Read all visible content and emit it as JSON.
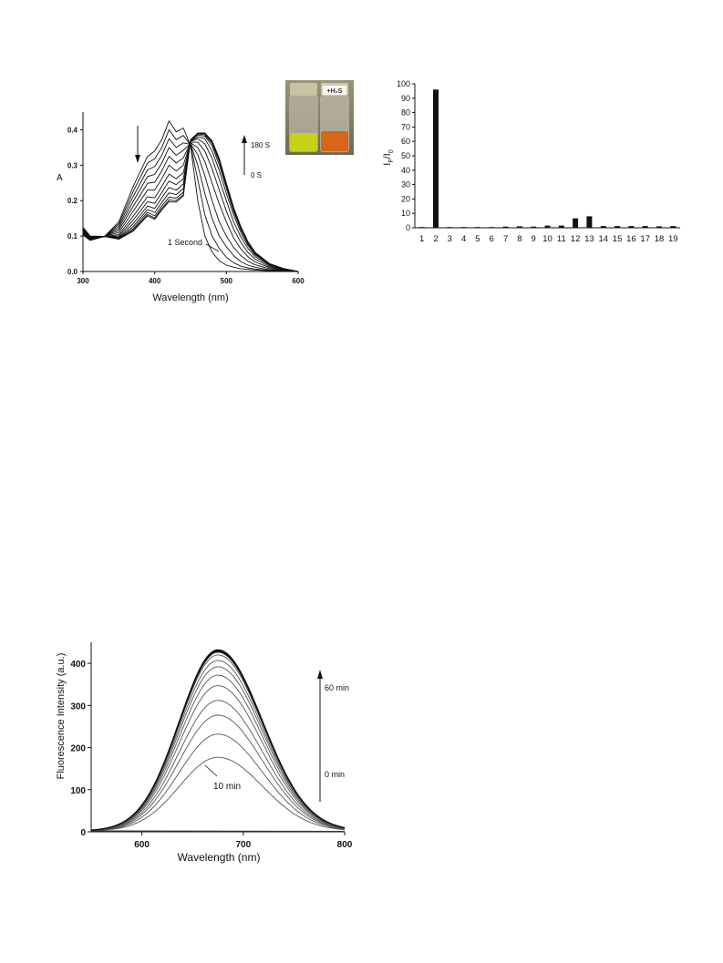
{
  "chart_data": [
    {
      "type": "line",
      "xlabel": "Wavelength (nm)",
      "ylabel": "A",
      "xlim": [
        300,
        600
      ],
      "ylim": [
        0,
        0.45
      ],
      "x_ticks": [
        "300",
        "400",
        "500",
        "600"
      ],
      "y_ticks": [
        "0.0",
        "0.1",
        "0.2",
        "0.3",
        "0.4"
      ],
      "annotations": {
        "time_top": "180 S",
        "time_bottom": "0 S",
        "first_curve": "1 Second"
      },
      "series": [
        {
          "x": [
            300,
            310,
            330,
            350,
            370,
            390,
            400,
            410,
            420,
            430,
            440,
            450,
            460,
            470,
            480,
            490,
            500,
            510,
            520,
            530,
            540,
            560,
            580,
            600
          ],
          "y": [
            0.125,
            0.1,
            0.099,
            0.14,
            0.24,
            0.325,
            0.34,
            0.372,
            0.425,
            0.394,
            0.405,
            0.355,
            0.2,
            0.1,
            0.055,
            0.03,
            0.018,
            0.012,
            0.008,
            0.006,
            0.004,
            0.002,
            0.001,
            0
          ]
        },
        {
          "x": [
            300,
            310,
            330,
            350,
            370,
            390,
            400,
            410,
            420,
            430,
            440,
            450,
            460,
            470,
            480,
            490,
            500,
            510,
            520,
            530,
            540,
            560,
            580,
            600
          ],
          "y": [
            0.122,
            0.098,
            0.099,
            0.134,
            0.226,
            0.306,
            0.318,
            0.35,
            0.4,
            0.372,
            0.384,
            0.357,
            0.26,
            0.16,
            0.1,
            0.065,
            0.04,
            0.025,
            0.015,
            0.01,
            0.007,
            0.003,
            0.001,
            0
          ]
        },
        {
          "x": [
            300,
            310,
            330,
            350,
            370,
            390,
            400,
            410,
            420,
            430,
            440,
            450,
            460,
            470,
            480,
            490,
            500,
            510,
            520,
            530,
            540,
            560,
            580,
            600
          ],
          "y": [
            0.12,
            0.097,
            0.099,
            0.128,
            0.212,
            0.287,
            0.296,
            0.328,
            0.375,
            0.35,
            0.363,
            0.359,
            0.3,
            0.22,
            0.15,
            0.1,
            0.07,
            0.045,
            0.028,
            0.018,
            0.012,
            0.005,
            0.002,
            0
          ]
        },
        {
          "x": [
            300,
            310,
            330,
            350,
            370,
            390,
            400,
            410,
            420,
            430,
            440,
            450,
            460,
            470,
            480,
            490,
            500,
            510,
            520,
            530,
            540,
            560,
            580,
            600
          ],
          "y": [
            0.118,
            0.096,
            0.099,
            0.122,
            0.198,
            0.268,
            0.274,
            0.306,
            0.35,
            0.328,
            0.342,
            0.361,
            0.33,
            0.27,
            0.2,
            0.14,
            0.1,
            0.068,
            0.045,
            0.029,
            0.019,
            0.008,
            0.003,
            0
          ]
        },
        {
          "x": [
            300,
            310,
            330,
            350,
            370,
            390,
            400,
            410,
            420,
            430,
            440,
            450,
            460,
            470,
            480,
            490,
            500,
            510,
            520,
            530,
            540,
            560,
            580,
            600
          ],
          "y": [
            0.116,
            0.095,
            0.099,
            0.116,
            0.184,
            0.249,
            0.252,
            0.284,
            0.325,
            0.306,
            0.321,
            0.363,
            0.35,
            0.31,
            0.25,
            0.19,
            0.14,
            0.095,
            0.064,
            0.042,
            0.027,
            0.011,
            0.004,
            0
          ]
        },
        {
          "x": [
            300,
            310,
            330,
            350,
            370,
            390,
            400,
            410,
            420,
            430,
            440,
            450,
            460,
            470,
            480,
            490,
            500,
            510,
            520,
            530,
            540,
            560,
            580,
            600
          ],
          "y": [
            0.114,
            0.094,
            0.099,
            0.11,
            0.17,
            0.23,
            0.23,
            0.262,
            0.3,
            0.284,
            0.3,
            0.365,
            0.365,
            0.34,
            0.29,
            0.23,
            0.17,
            0.12,
            0.082,
            0.054,
            0.035,
            0.014,
            0.005,
            0
          ]
        },
        {
          "x": [
            300,
            310,
            330,
            350,
            370,
            390,
            400,
            410,
            420,
            430,
            440,
            450,
            460,
            470,
            480,
            490,
            500,
            510,
            520,
            530,
            540,
            560,
            580,
            600
          ],
          "y": [
            0.112,
            0.093,
            0.099,
            0.104,
            0.156,
            0.211,
            0.208,
            0.24,
            0.275,
            0.262,
            0.279,
            0.367,
            0.375,
            0.36,
            0.32,
            0.26,
            0.2,
            0.14,
            0.098,
            0.065,
            0.042,
            0.017,
            0.006,
            0
          ]
        },
        {
          "x": [
            300,
            310,
            330,
            350,
            370,
            390,
            400,
            410,
            420,
            430,
            440,
            450,
            460,
            470,
            480,
            490,
            500,
            510,
            520,
            530,
            540,
            560,
            580,
            600
          ],
          "y": [
            0.11,
            0.092,
            0.099,
            0.1,
            0.145,
            0.197,
            0.192,
            0.223,
            0.255,
            0.245,
            0.262,
            0.368,
            0.38,
            0.375,
            0.34,
            0.285,
            0.22,
            0.16,
            0.11,
            0.073,
            0.047,
            0.019,
            0.007,
            0
          ]
        },
        {
          "x": [
            300,
            310,
            330,
            350,
            370,
            390,
            400,
            410,
            420,
            430,
            440,
            450,
            460,
            470,
            480,
            490,
            500,
            510,
            520,
            530,
            540,
            560,
            580,
            600
          ],
          "y": [
            0.108,
            0.091,
            0.099,
            0.097,
            0.135,
            0.185,
            0.178,
            0.208,
            0.237,
            0.23,
            0.247,
            0.369,
            0.385,
            0.382,
            0.355,
            0.3,
            0.235,
            0.17,
            0.118,
            0.078,
            0.05,
            0.02,
            0.007,
            0
          ]
        },
        {
          "x": [
            300,
            310,
            330,
            350,
            370,
            390,
            400,
            410,
            420,
            430,
            440,
            450,
            460,
            470,
            480,
            490,
            500,
            510,
            520,
            530,
            540,
            560,
            580,
            600
          ],
          "y": [
            0.106,
            0.09,
            0.099,
            0.095,
            0.127,
            0.175,
            0.166,
            0.195,
            0.222,
            0.217,
            0.234,
            0.37,
            0.388,
            0.386,
            0.362,
            0.31,
            0.242,
            0.175,
            0.122,
            0.081,
            0.052,
            0.021,
            0.008,
            0
          ]
        },
        {
          "x": [
            300,
            310,
            330,
            350,
            370,
            390,
            400,
            410,
            420,
            430,
            440,
            450,
            460,
            470,
            480,
            490,
            500,
            510,
            520,
            530,
            540,
            560,
            580,
            600
          ],
          "y": [
            0.105,
            0.089,
            0.099,
            0.093,
            0.121,
            0.167,
            0.157,
            0.185,
            0.21,
            0.207,
            0.224,
            0.371,
            0.39,
            0.389,
            0.366,
            0.315,
            0.246,
            0.178,
            0.125,
            0.083,
            0.053,
            0.021,
            0.008,
            0
          ]
        },
        {
          "x": [
            300,
            310,
            330,
            350,
            370,
            390,
            400,
            410,
            420,
            430,
            440,
            450,
            460,
            470,
            480,
            490,
            500,
            510,
            520,
            530,
            540,
            560,
            580,
            600
          ],
          "y": [
            0.104,
            0.088,
            0.099,
            0.092,
            0.117,
            0.161,
            0.151,
            0.178,
            0.202,
            0.2,
            0.217,
            0.371,
            0.39,
            0.39,
            0.368,
            0.318,
            0.248,
            0.18,
            0.126,
            0.084,
            0.054,
            0.022,
            0.008,
            0
          ]
        },
        {
          "x": [
            300,
            310,
            330,
            350,
            370,
            390,
            400,
            410,
            420,
            430,
            440,
            450,
            460,
            470,
            480,
            490,
            500,
            510,
            520,
            530,
            540,
            560,
            580,
            600
          ],
          "y": [
            0.103,
            0.088,
            0.099,
            0.091,
            0.114,
            0.157,
            0.147,
            0.174,
            0.197,
            0.196,
            0.213,
            0.372,
            0.391,
            0.391,
            0.369,
            0.319,
            0.249,
            0.181,
            0.127,
            0.084,
            0.054,
            0.022,
            0.008,
            0
          ]
        }
      ]
    },
    {
      "type": "bar",
      "ylabel": "I",
      "ylabel_sub1": "F",
      "ylabel_mid": "/I",
      "ylabel_sub2": "0",
      "ylim": [
        0,
        100
      ],
      "y_ticks": [
        "0",
        "10",
        "20",
        "30",
        "40",
        "50",
        "60",
        "70",
        "80",
        "90",
        "100"
      ],
      "categories": [
        "1",
        "2",
        "3",
        "4",
        "5",
        "6",
        "7",
        "8",
        "9",
        "10",
        "11",
        "12",
        "13",
        "14",
        "15",
        "16",
        "17",
        "18",
        "19"
      ],
      "values": [
        0.5,
        96,
        0.5,
        0.5,
        0.5,
        0.5,
        0.8,
        1.0,
        0.8,
        1.5,
        1.5,
        6.5,
        8,
        1.2,
        1.2,
        1.2,
        1.2,
        1.0,
        1.2
      ]
    },
    {
      "type": "line",
      "xlabel": "Wavelength (nm)",
      "ylabel": "Fluorescence Intensity (a.u.)",
      "xlim": [
        550,
        800
      ],
      "ylim": [
        0,
        450
      ],
      "x_ticks": [
        "600",
        "700",
        "800"
      ],
      "y_ticks": [
        "0",
        "100",
        "200",
        "300",
        "400"
      ],
      "annotations": {
        "time_top": "60 min",
        "time_bottom": "0 min",
        "first_curve": "10 min"
      },
      "peak_nm": 675,
      "peak_intensities": [
        175,
        230,
        275,
        310,
        345,
        370,
        390,
        405,
        418,
        425,
        428,
        430
      ]
    }
  ],
  "photo": {
    "label": "+H₂S",
    "left_vial_color": "#c6d11a",
    "right_vial_color": "#d7651a"
  }
}
